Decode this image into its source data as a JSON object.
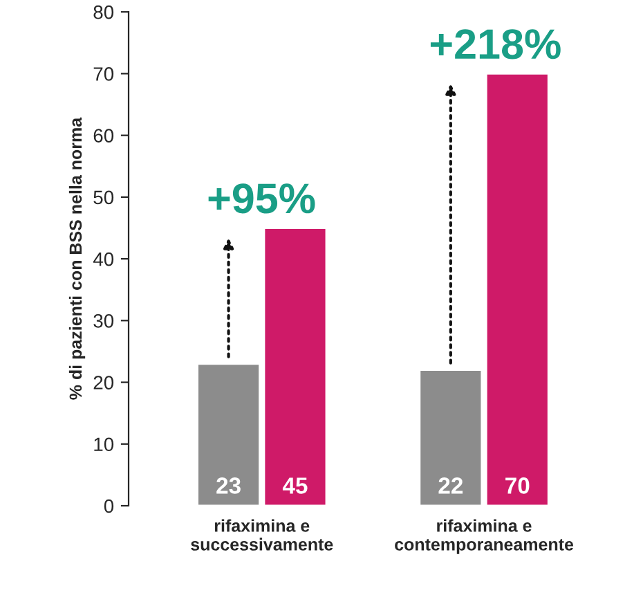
{
  "chart_data": {
    "type": "bar",
    "ylabel": "% di pazienti con BSS nella norma",
    "categories": [
      "rifaximina e\nsuccessivamente",
      "rifaximina e\ncontemporaneamente"
    ],
    "series": [
      {
        "color": "#8c8c8c",
        "values": [
          23,
          22
        ]
      },
      {
        "color": "#cf1a68",
        "values": [
          45,
          70
        ]
      }
    ],
    "ylim": [
      0,
      80
    ],
    "yticks": [
      0,
      10,
      20,
      30,
      40,
      50,
      60,
      70,
      80
    ],
    "data_labels": true,
    "grid": false,
    "legend": false,
    "annotations": [
      "+95%",
      "+218%"
    ]
  }
}
